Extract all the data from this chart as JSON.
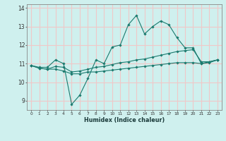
{
  "x": [
    0,
    1,
    2,
    3,
    4,
    5,
    6,
    7,
    8,
    9,
    10,
    11,
    12,
    13,
    14,
    15,
    16,
    17,
    18,
    19,
    20,
    21,
    22,
    23
  ],
  "line1": [
    10.9,
    10.8,
    10.8,
    11.2,
    11.0,
    8.8,
    9.3,
    10.2,
    11.2,
    11.0,
    11.9,
    12.0,
    13.1,
    13.6,
    12.6,
    13.0,
    13.3,
    13.1,
    12.4,
    11.85,
    11.85,
    11.0,
    11.1,
    11.2
  ],
  "line2": [
    10.9,
    10.75,
    10.7,
    10.85,
    10.8,
    10.55,
    10.6,
    10.7,
    10.8,
    10.85,
    10.95,
    11.05,
    11.1,
    11.2,
    11.25,
    11.35,
    11.45,
    11.55,
    11.65,
    11.7,
    11.75,
    11.1,
    11.1,
    11.2
  ],
  "line3": [
    10.9,
    10.75,
    10.7,
    10.7,
    10.6,
    10.45,
    10.45,
    10.55,
    10.55,
    10.6,
    10.65,
    10.7,
    10.75,
    10.8,
    10.85,
    10.9,
    10.95,
    11.0,
    11.05,
    11.05,
    11.05,
    11.0,
    11.05,
    11.2
  ],
  "bg_color": "#cff0ee",
  "grid_color": "#f0c8c8",
  "line_color": "#1a7a6e",
  "xlabel": "Humidex (Indice chaleur)",
  "ylim": [
    8.5,
    14.2
  ],
  "xlim": [
    -0.5,
    23.5
  ],
  "yticks": [
    9,
    10,
    11,
    12,
    13,
    14
  ],
  "xticks": [
    0,
    1,
    2,
    3,
    4,
    5,
    6,
    7,
    8,
    9,
    10,
    11,
    12,
    13,
    14,
    15,
    16,
    17,
    18,
    19,
    20,
    21,
    22,
    23
  ]
}
